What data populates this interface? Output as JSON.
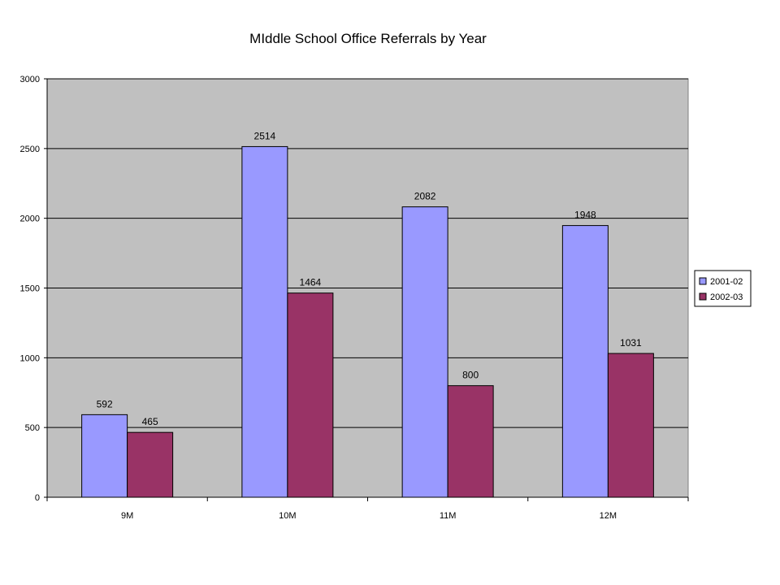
{
  "chart_data": {
    "type": "bar",
    "title": "MIddle School Office Referrals by Year",
    "categories": [
      "9M",
      "10M",
      "11M",
      "12M"
    ],
    "series": [
      {
        "name": "2001-02",
        "values": [
          592,
          2514,
          2082,
          1948
        ],
        "color": "#9999ff"
      },
      {
        "name": "2002-03",
        "values": [
          465,
          1464,
          800,
          1031
        ],
        "color": "#993366"
      }
    ],
    "ylim": [
      0,
      3000
    ],
    "yticks": [
      0,
      500,
      1000,
      1500,
      2000,
      2500,
      3000
    ],
    "grid": true,
    "legend": "right",
    "plot_background": "#c0c0c0"
  }
}
